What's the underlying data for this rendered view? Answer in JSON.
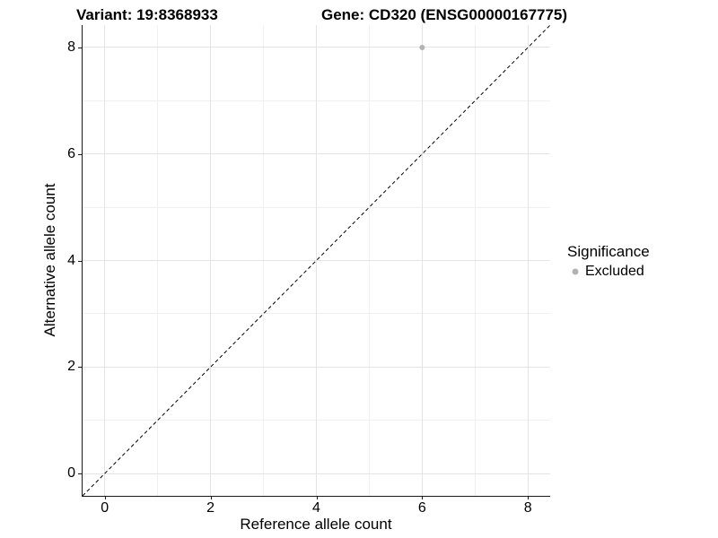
{
  "titles": {
    "variant": "Variant: 19:8368933",
    "gene": "Gene: CD320 (ENSG00000167775)"
  },
  "chart_data": {
    "type": "scatter",
    "title_left": "Variant: 19:8368933",
    "title_right": "Gene: CD320 (ENSG00000167775)",
    "xlabel": "Reference allele count",
    "ylabel": "Alternative allele count",
    "xlim": [
      -0.42,
      8.42
    ],
    "ylim": [
      -0.42,
      8.42
    ],
    "xticks": [
      0,
      2,
      4,
      6,
      8
    ],
    "yticks": [
      0,
      2,
      4,
      6,
      8
    ],
    "minor_xticks": [
      1,
      3,
      5,
      7
    ],
    "minor_yticks": [
      1,
      3,
      5,
      7
    ],
    "grid": true,
    "points": [
      {
        "x": 6,
        "y": 8,
        "series": "Excluded"
      }
    ],
    "reference_line": {
      "type": "identity y=x",
      "style": "dashed",
      "color": "#000000"
    },
    "legend": {
      "title": "Significance",
      "position": "right",
      "entries": [
        {
          "label": "Excluded",
          "color": "#b3b3b3"
        }
      ]
    }
  },
  "colors": {
    "background": "#ffffff",
    "point_gray": "#b3b3b3",
    "grid_major": "#e4e4e4",
    "grid_minor": "#f0f0f0",
    "axis_line": "#1a1a1a",
    "text": "#000000"
  }
}
